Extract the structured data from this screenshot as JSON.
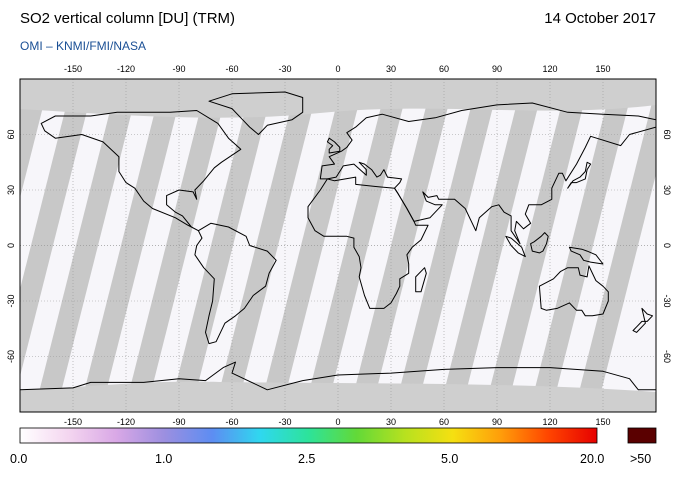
{
  "header": {
    "title": "SO2 vertical column [DU] (TRM)",
    "date": "14 October 2017",
    "subtitle": "OMI  –  KNMI/FMI/NASA"
  },
  "map": {
    "projection": "equirectangular",
    "lon_range": [
      -180,
      180
    ],
    "lat_range": [
      -90,
      90
    ],
    "lon_ticks": [
      -150,
      -120,
      -90,
      -60,
      -30,
      0,
      30,
      60,
      90,
      120,
      150
    ],
    "lat_ticks": [
      60,
      30,
      0,
      -30,
      -60
    ],
    "colors": {
      "background": "#f7f6fa",
      "polar_nodata": "#cfcfcf",
      "orbit_gap": "#c8c8c8",
      "land_gap": "#a8a8a8",
      "coast": "#000000",
      "grid": "#9a9a9a"
    }
  },
  "colorbar": {
    "labels": [
      "0.0",
      "1.0",
      "2.5",
      "5.0",
      "20.0",
      ">50"
    ],
    "colors": [
      "#ffffff",
      "#f4d6f0",
      "#d9a8e6",
      "#9c8fe0",
      "#5d8df2",
      "#2fd8ef",
      "#2de39a",
      "#62d938",
      "#b7e11f",
      "#f5e011",
      "#ff9d0a",
      "#ff4400",
      "#e60000"
    ],
    "overflow_color": "#5a0000"
  }
}
